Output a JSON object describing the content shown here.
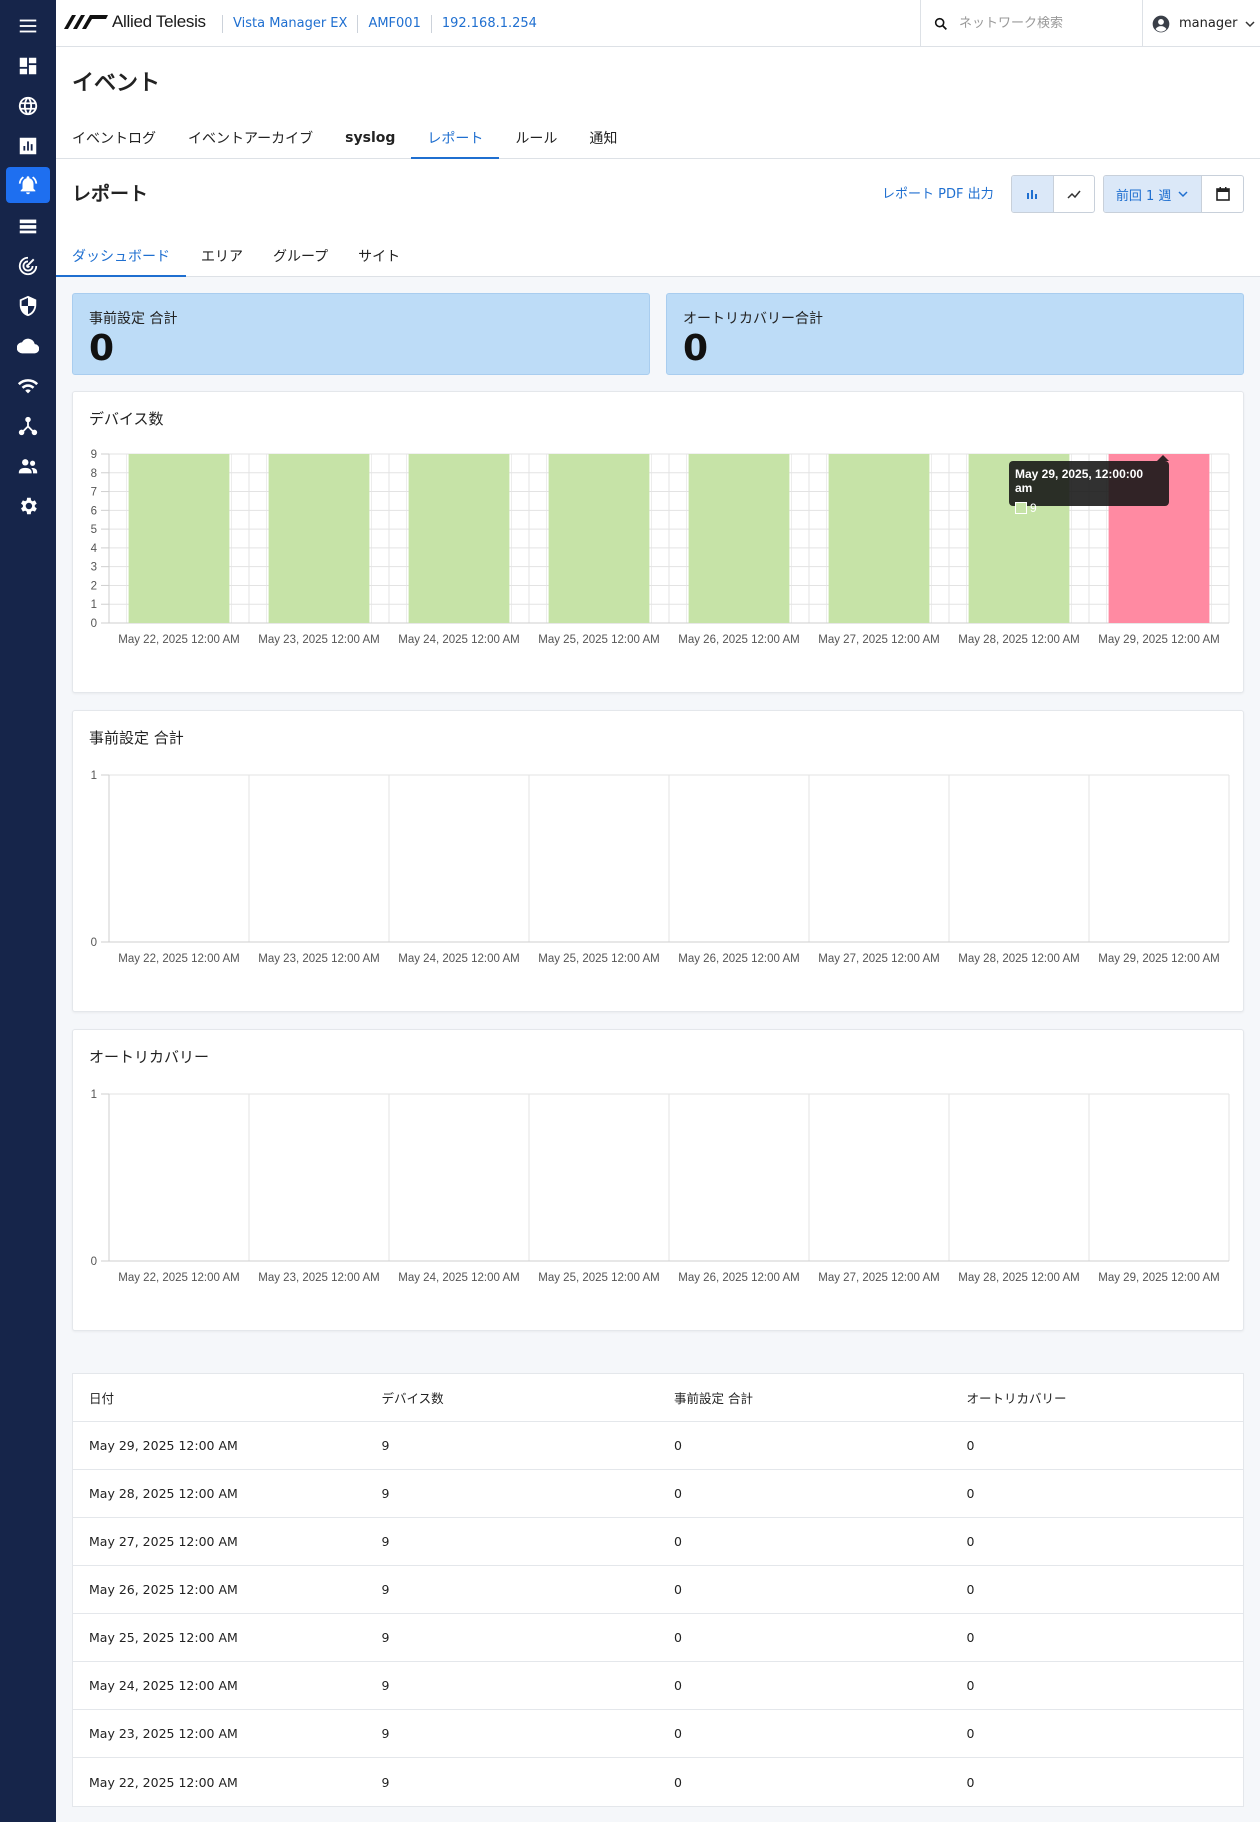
{
  "app": {
    "brand": "Allied Telesis",
    "breadcrumbs": [
      "Vista Manager EX",
      "AMF001",
      "192.168.1.254"
    ],
    "search_placeholder": "ネットワーク検索",
    "user": "manager"
  },
  "sidebar": {
    "items": [
      {
        "icon": "menu-icon"
      },
      {
        "icon": "dashboard-icon"
      },
      {
        "icon": "globe-icon"
      },
      {
        "icon": "bar-chart-icon"
      },
      {
        "icon": "alarm-icon",
        "active": true
      },
      {
        "icon": "list-icon"
      },
      {
        "icon": "radar-icon"
      },
      {
        "icon": "shield-icon"
      },
      {
        "icon": "cloud-icon"
      },
      {
        "icon": "wifi-icon"
      },
      {
        "icon": "topology-icon"
      },
      {
        "icon": "users-icon"
      },
      {
        "icon": "gear-icon"
      }
    ]
  },
  "page": {
    "title": "イベント",
    "tabs": [
      {
        "label": "イベントログ"
      },
      {
        "label": "イベントアーカイブ"
      },
      {
        "label": "syslog"
      },
      {
        "label": "レポート",
        "active": true
      },
      {
        "label": "ルール"
      },
      {
        "label": "通知"
      }
    ]
  },
  "report": {
    "title": "レポート",
    "pdf_label": "レポート PDF 出力",
    "range_label": "前回 1 週",
    "subtabs": [
      {
        "label": "ダッシュボード",
        "active": true
      },
      {
        "label": "エリア"
      },
      {
        "label": "グループ"
      },
      {
        "label": "サイト"
      }
    ]
  },
  "cards": [
    {
      "label": "事前設定 合計",
      "value": "0"
    },
    {
      "label": "オートリカバリー合計",
      "value": "0"
    }
  ],
  "tooltip": {
    "title": "May 29, 2025, 12:00:00 am",
    "value": "9"
  },
  "chart_data": [
    {
      "type": "bar",
      "title": "デバイス数",
      "categories": [
        "May 22, 2025 12:00 AM",
        "May 23, 2025 12:00 AM",
        "May 24, 2025 12:00 AM",
        "May 25, 2025 12:00 AM",
        "May 26, 2025 12:00 AM",
        "May 27, 2025 12:00 AM",
        "May 28, 2025 12:00 AM",
        "May 29, 2025 12:00 AM"
      ],
      "values": [
        9,
        9,
        9,
        9,
        9,
        9,
        9,
        9
      ],
      "highlight_index": 7,
      "ylim": [
        0,
        9
      ],
      "yticks": [
        0,
        1,
        2,
        3,
        4,
        5,
        6,
        7,
        8,
        9
      ],
      "color": "#c6e3a7",
      "highlight_color": "#ff8aa2"
    },
    {
      "type": "bar",
      "title": "事前設定 合計",
      "categories": [
        "May 22, 2025 12:00 AM",
        "May 23, 2025 12:00 AM",
        "May 24, 2025 12:00 AM",
        "May 25, 2025 12:00 AM",
        "May 26, 2025 12:00 AM",
        "May 27, 2025 12:00 AM",
        "May 28, 2025 12:00 AM",
        "May 29, 2025 12:00 AM"
      ],
      "values": [
        0,
        0,
        0,
        0,
        0,
        0,
        0,
        0
      ],
      "ylim": [
        0,
        1
      ],
      "yticks": [
        0,
        1
      ]
    },
    {
      "type": "bar",
      "title": "オートリカバリー",
      "categories": [
        "May 22, 2025 12:00 AM",
        "May 23, 2025 12:00 AM",
        "May 24, 2025 12:00 AM",
        "May 25, 2025 12:00 AM",
        "May 26, 2025 12:00 AM",
        "May 27, 2025 12:00 AM",
        "May 28, 2025 12:00 AM",
        "May 29, 2025 12:00 AM"
      ],
      "values": [
        0,
        0,
        0,
        0,
        0,
        0,
        0,
        0
      ],
      "ylim": [
        0,
        1
      ],
      "yticks": [
        0,
        1
      ]
    }
  ],
  "table": {
    "headers": [
      "日付",
      "デバイス数",
      "事前設定 合計",
      "オートリカバリー"
    ],
    "rows": [
      [
        "May 29, 2025 12:00 AM",
        "9",
        "0",
        "0"
      ],
      [
        "May 28, 2025 12:00 AM",
        "9",
        "0",
        "0"
      ],
      [
        "May 27, 2025 12:00 AM",
        "9",
        "0",
        "0"
      ],
      [
        "May 26, 2025 12:00 AM",
        "9",
        "0",
        "0"
      ],
      [
        "May 25, 2025 12:00 AM",
        "9",
        "0",
        "0"
      ],
      [
        "May 24, 2025 12:00 AM",
        "9",
        "0",
        "0"
      ],
      [
        "May 23, 2025 12:00 AM",
        "9",
        "0",
        "0"
      ],
      [
        "May 22, 2025 12:00 AM",
        "9",
        "0",
        "0"
      ]
    ]
  }
}
